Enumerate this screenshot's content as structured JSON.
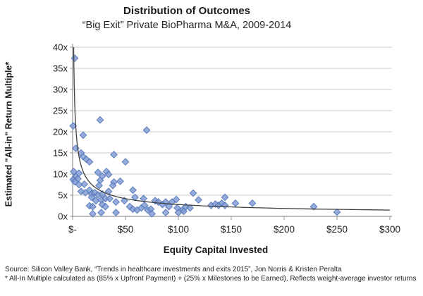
{
  "header": {
    "title": "Distribution of Outcomes",
    "subtitle": "“Big Exit” Private BioPharma M&A, 2009-2014"
  },
  "footer": {
    "source_line": "Source: Silicon Valley Bank, “Trends in healthcare investments and exits 2015”, Jon Norris & Kristen Peralta",
    "footnote_line": "* All-In Multiple calculated as (85% x Upfront Payment) + (25% x Milestones to be Earned), Reflects weight-average investor returns"
  },
  "chart_data": {
    "type": "scatter",
    "title": "Distribution of Outcomes",
    "subtitle": "“Big Exit” Private BioPharma M&A, 2009-2014",
    "xlabel": "Equity Capital Invested",
    "ylabel": "Estimated \"All-in\" Return Multiple*",
    "xlim": [
      0,
      300
    ],
    "ylim": [
      0,
      40
    ],
    "grid": "horizontal",
    "legend": "none",
    "x_ticks": [
      {
        "value": 0,
        "label": "$-"
      },
      {
        "value": 50,
        "label": "$50"
      },
      {
        "value": 100,
        "label": "$100"
      },
      {
        "value": 150,
        "label": "$150"
      },
      {
        "value": 200,
        "label": "$200"
      },
      {
        "value": 250,
        "label": "$250"
      },
      {
        "value": 300,
        "label": "$300"
      }
    ],
    "y_ticks": [
      {
        "value": 0,
        "label": "0x"
      },
      {
        "value": 5,
        "label": "5x"
      },
      {
        "value": 10,
        "label": "10x"
      },
      {
        "value": 15,
        "label": "15x"
      },
      {
        "value": 20,
        "label": "20x"
      },
      {
        "value": 25,
        "label": "25x"
      },
      {
        "value": 30,
        "label": "30x"
      },
      {
        "value": 35,
        "label": "35x"
      },
      {
        "value": 40,
        "label": "40x"
      }
    ],
    "points": [
      [
        2,
        37.4
      ],
      [
        0.5,
        21.4
      ],
      [
        26,
        22.8
      ],
      [
        70,
        20.4
      ],
      [
        10,
        19.2
      ],
      [
        3,
        16.1
      ],
      [
        8,
        15.0
      ],
      [
        10,
        14.1
      ],
      [
        13,
        13.5
      ],
      [
        16,
        12.9
      ],
      [
        39,
        14.6
      ],
      [
        50,
        12.9
      ],
      [
        1,
        10.6
      ],
      [
        6,
        10.2
      ],
      [
        3,
        9.4
      ],
      [
        0.5,
        8.7
      ],
      [
        5,
        8.9
      ],
      [
        2,
        8.2
      ],
      [
        11,
        7.6
      ],
      [
        6,
        7.5
      ],
      [
        24,
        10.4
      ],
      [
        32,
        10.6
      ],
      [
        28,
        9.5
      ],
      [
        34,
        9.9
      ],
      [
        26,
        8.5
      ],
      [
        39,
        8.1
      ],
      [
        45,
        8.3
      ],
      [
        25,
        7.3
      ],
      [
        38,
        7.3
      ],
      [
        8,
        5.9
      ],
      [
        12,
        5.6
      ],
      [
        16,
        6.2
      ],
      [
        18,
        5.3
      ],
      [
        21,
        5.6
      ],
      [
        24,
        5.1
      ],
      [
        28,
        5.3
      ],
      [
        34,
        5.9
      ],
      [
        57,
        6.2
      ],
      [
        18,
        4.5
      ],
      [
        22,
        3.7
      ],
      [
        27,
        3.9
      ],
      [
        31,
        4.2
      ],
      [
        35,
        4.2
      ],
      [
        41,
        3.4
      ],
      [
        49,
        3.7
      ],
      [
        59,
        4.5
      ],
      [
        67,
        4.2
      ],
      [
        16,
        2.5
      ],
      [
        19,
        2.3
      ],
      [
        28,
        2.8
      ],
      [
        31,
        2.3
      ],
      [
        54,
        2.3
      ],
      [
        57,
        1.7
      ],
      [
        61,
        1.5
      ],
      [
        65,
        2.0
      ],
      [
        68,
        2.6
      ],
      [
        71,
        1.5
      ],
      [
        74,
        1.7
      ],
      [
        19,
        0.6
      ],
      [
        27,
        0.9
      ],
      [
        41,
        0.9
      ],
      [
        75,
        0.6
      ],
      [
        88,
        0.9
      ],
      [
        78,
        3.7
      ],
      [
        81,
        3.4
      ],
      [
        85,
        2.8
      ],
      [
        88,
        3.4
      ],
      [
        91,
        2.3
      ],
      [
        94,
        3.4
      ],
      [
        98,
        4.0
      ],
      [
        99,
        2.0
      ],
      [
        100,
        0.9
      ],
      [
        104,
        1.5
      ],
      [
        105,
        1.2
      ],
      [
        107,
        2.3
      ],
      [
        111,
        2.0
      ],
      [
        114,
        5.5
      ],
      [
        119,
        3.9
      ],
      [
        131,
        2.6
      ],
      [
        135,
        2.9
      ],
      [
        138,
        2.6
      ],
      [
        141,
        3.1
      ],
      [
        144,
        2.6
      ],
      [
        144,
        4.5
      ],
      [
        154,
        3.1
      ],
      [
        170,
        3.1
      ],
      [
        228,
        2.3
      ],
      [
        250,
        1.0
      ]
    ],
    "trend": {
      "type": "power",
      "a": 40,
      "b": -0.577,
      "x_start": 1,
      "x_end": 300
    },
    "colors": {
      "marker_fill": "#7C98D2",
      "marker_stroke": "#5577BB",
      "trend_line": "#3F3F3F",
      "gridline": "#C9C9C9",
      "axis": "#949494",
      "text": "#1F1F1F"
    }
  }
}
